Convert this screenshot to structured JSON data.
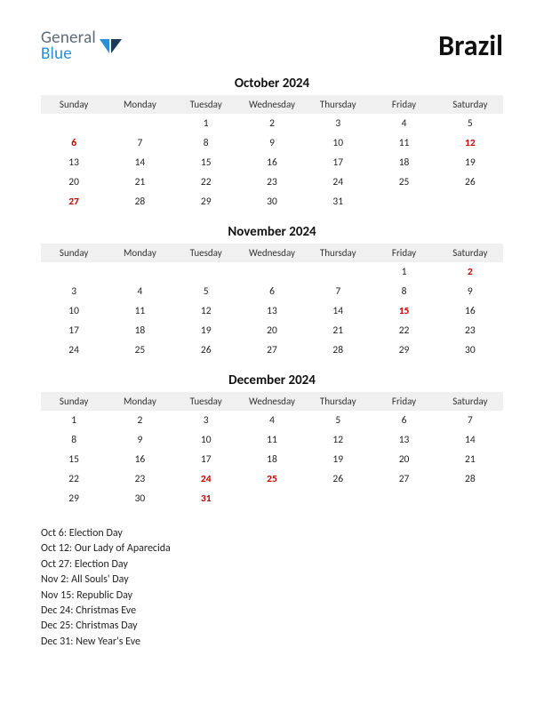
{
  "logo": {
    "general": "General",
    "blue": "Blue"
  },
  "title": "Brazil",
  "dayHeaders": [
    "Sunday",
    "Monday",
    "Tuesday",
    "Wednesday",
    "Thursday",
    "Friday",
    "Saturday"
  ],
  "colors": {
    "headerBg": "#f0f0f0",
    "text": "#222222",
    "holiday": "#c40000",
    "logoGray": "#5f6b75",
    "logoBlue": "#2a8fd6",
    "background": "#ffffff"
  },
  "typography": {
    "titleSize": 32,
    "monthTitleSize": 15,
    "dayHeaderSize": 11,
    "cellSize": 11.5,
    "holidayListSize": 12
  },
  "months": [
    {
      "title": "October 2024",
      "weeks": [
        [
          {
            "d": ""
          },
          {
            "d": ""
          },
          {
            "d": "1"
          },
          {
            "d": "2"
          },
          {
            "d": "3"
          },
          {
            "d": "4"
          },
          {
            "d": "5"
          }
        ],
        [
          {
            "d": "6",
            "h": true
          },
          {
            "d": "7"
          },
          {
            "d": "8"
          },
          {
            "d": "9"
          },
          {
            "d": "10"
          },
          {
            "d": "11"
          },
          {
            "d": "12",
            "h": true
          }
        ],
        [
          {
            "d": "13"
          },
          {
            "d": "14"
          },
          {
            "d": "15"
          },
          {
            "d": "16"
          },
          {
            "d": "17"
          },
          {
            "d": "18"
          },
          {
            "d": "19"
          }
        ],
        [
          {
            "d": "20"
          },
          {
            "d": "21"
          },
          {
            "d": "22"
          },
          {
            "d": "23"
          },
          {
            "d": "24"
          },
          {
            "d": "25"
          },
          {
            "d": "26"
          }
        ],
        [
          {
            "d": "27",
            "h": true
          },
          {
            "d": "28"
          },
          {
            "d": "29"
          },
          {
            "d": "30"
          },
          {
            "d": "31"
          },
          {
            "d": ""
          },
          {
            "d": ""
          }
        ]
      ]
    },
    {
      "title": "November 2024",
      "weeks": [
        [
          {
            "d": ""
          },
          {
            "d": ""
          },
          {
            "d": ""
          },
          {
            "d": ""
          },
          {
            "d": ""
          },
          {
            "d": "1"
          },
          {
            "d": "2",
            "h": true
          }
        ],
        [
          {
            "d": "3"
          },
          {
            "d": "4"
          },
          {
            "d": "5"
          },
          {
            "d": "6"
          },
          {
            "d": "7"
          },
          {
            "d": "8"
          },
          {
            "d": "9"
          }
        ],
        [
          {
            "d": "10"
          },
          {
            "d": "11"
          },
          {
            "d": "12"
          },
          {
            "d": "13"
          },
          {
            "d": "14"
          },
          {
            "d": "15",
            "h": true
          },
          {
            "d": "16"
          }
        ],
        [
          {
            "d": "17"
          },
          {
            "d": "18"
          },
          {
            "d": "19"
          },
          {
            "d": "20"
          },
          {
            "d": "21"
          },
          {
            "d": "22"
          },
          {
            "d": "23"
          }
        ],
        [
          {
            "d": "24"
          },
          {
            "d": "25"
          },
          {
            "d": "26"
          },
          {
            "d": "27"
          },
          {
            "d": "28"
          },
          {
            "d": "29"
          },
          {
            "d": "30"
          }
        ]
      ]
    },
    {
      "title": "December 2024",
      "weeks": [
        [
          {
            "d": "1"
          },
          {
            "d": "2"
          },
          {
            "d": "3"
          },
          {
            "d": "4"
          },
          {
            "d": "5"
          },
          {
            "d": "6"
          },
          {
            "d": "7"
          }
        ],
        [
          {
            "d": "8"
          },
          {
            "d": "9"
          },
          {
            "d": "10"
          },
          {
            "d": "11"
          },
          {
            "d": "12"
          },
          {
            "d": "13"
          },
          {
            "d": "14"
          }
        ],
        [
          {
            "d": "15"
          },
          {
            "d": "16"
          },
          {
            "d": "17"
          },
          {
            "d": "18"
          },
          {
            "d": "19"
          },
          {
            "d": "20"
          },
          {
            "d": "21"
          }
        ],
        [
          {
            "d": "22"
          },
          {
            "d": "23"
          },
          {
            "d": "24",
            "h": true
          },
          {
            "d": "25",
            "h": true
          },
          {
            "d": "26"
          },
          {
            "d": "27"
          },
          {
            "d": "28"
          }
        ],
        [
          {
            "d": "29"
          },
          {
            "d": "30"
          },
          {
            "d": "31",
            "h": true
          },
          {
            "d": ""
          },
          {
            "d": ""
          },
          {
            "d": ""
          },
          {
            "d": ""
          }
        ]
      ]
    }
  ],
  "holidayList": [
    "Oct 6: Election Day",
    "Oct 12: Our Lady of Aparecida",
    "Oct 27: Election Day",
    "Nov 2: All Souls' Day",
    "Nov 15: Republic Day",
    "Dec 24: Christmas Eve",
    "Dec 25: Christmas Day",
    "Dec 31: New Year's Eve"
  ]
}
